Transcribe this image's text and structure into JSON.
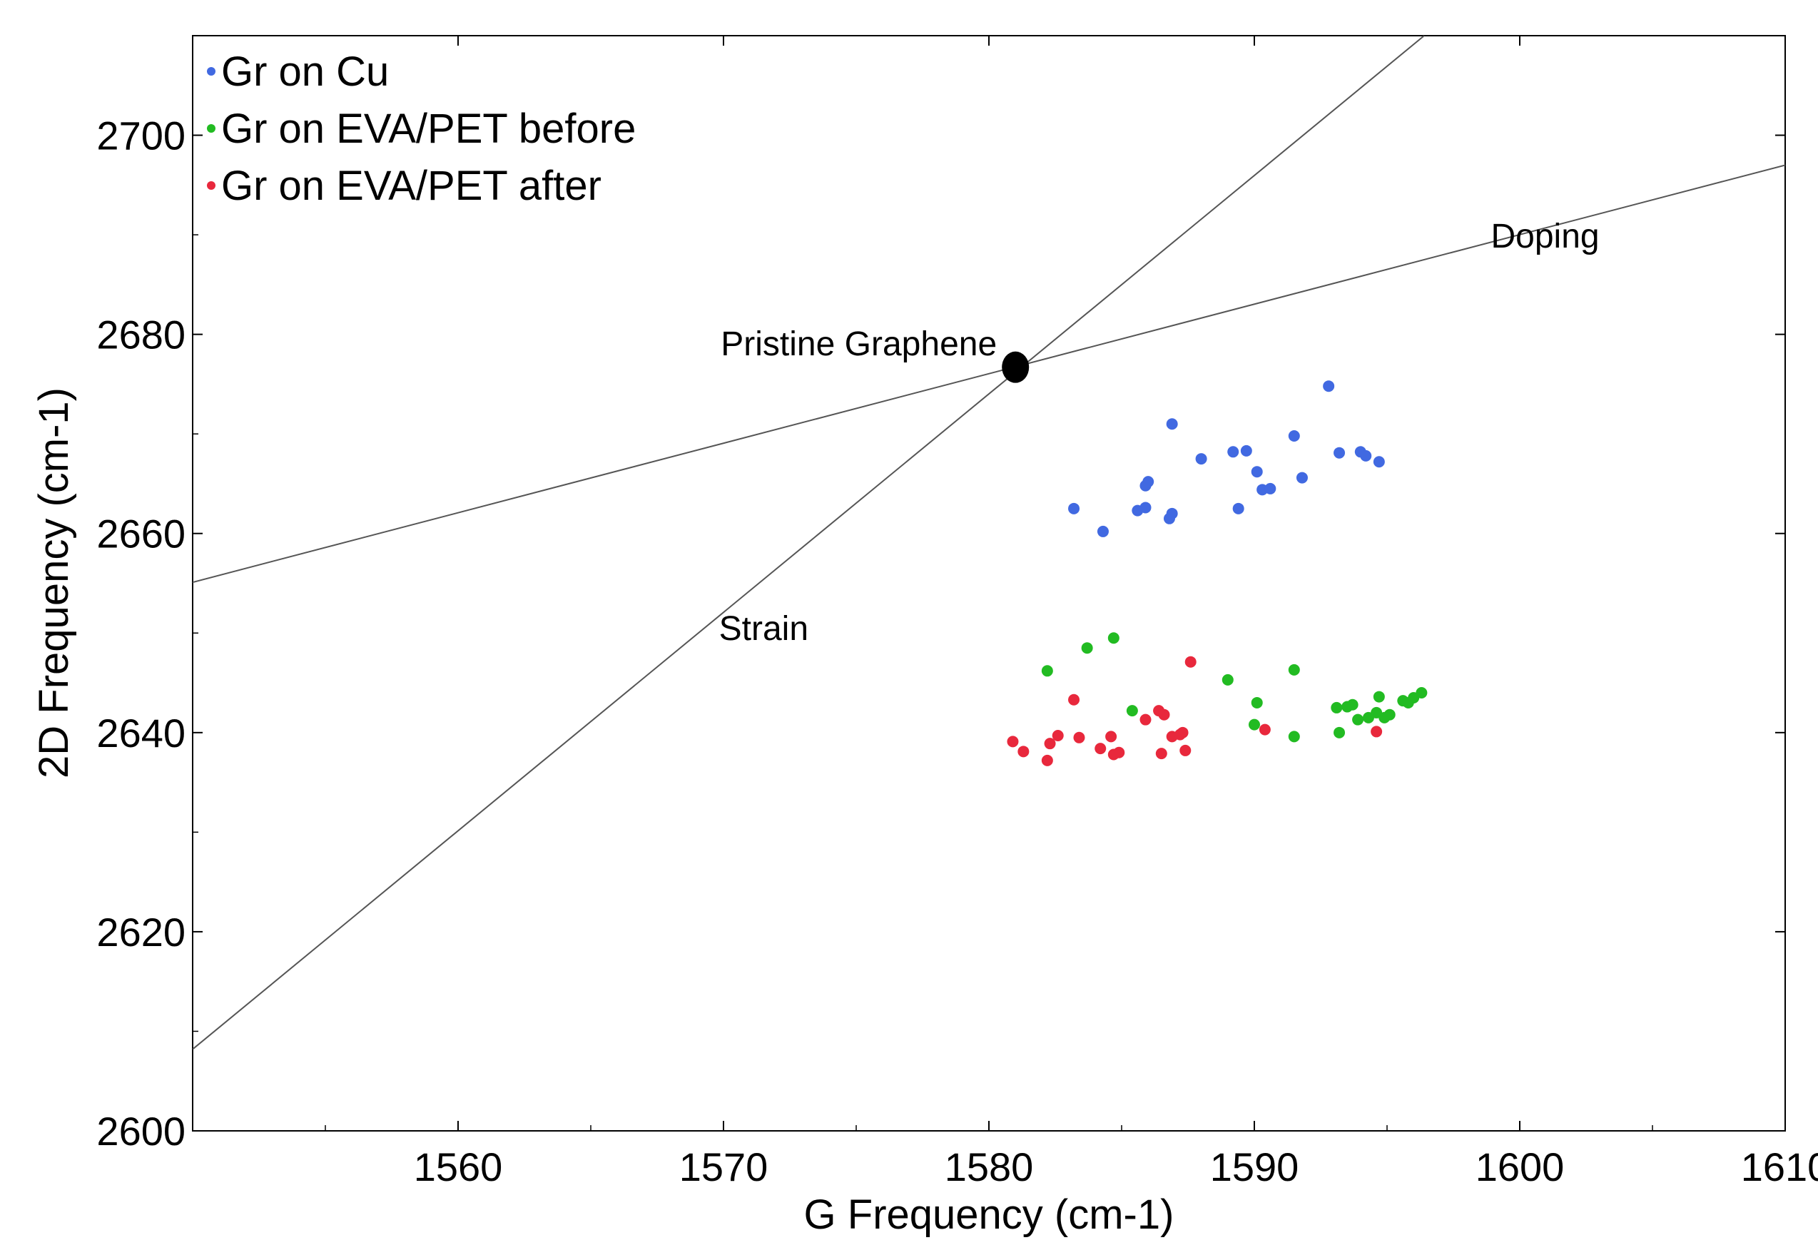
{
  "chart_data": {
    "type": "scatter",
    "title": "",
    "xlabel": "G Frequency (cm-1)",
    "ylabel": "2D Frequency (cm-1)",
    "xlim": [
      1550,
      1610
    ],
    "ylim": [
      2600,
      2710
    ],
    "xticks": [
      1560,
      1570,
      1580,
      1590,
      1600,
      1610
    ],
    "yticks": [
      2600,
      2620,
      2640,
      2660,
      2680,
      2700
    ],
    "grid": false,
    "legend_position": "top-left",
    "series": [
      {
        "name": "Gr on Cu",
        "color": "#4169e1",
        "points": [
          [
            1583.2,
            2662.5
          ],
          [
            1584.3,
            2660.2
          ],
          [
            1585.6,
            2662.3
          ],
          [
            1585.9,
            2662.6
          ],
          [
            1585.9,
            2664.8
          ],
          [
            1586.0,
            2665.2
          ],
          [
            1586.8,
            2661.5
          ],
          [
            1586.9,
            2662.0
          ],
          [
            1586.9,
            2671.0
          ],
          [
            1588.0,
            2667.5
          ],
          [
            1589.2,
            2668.2
          ],
          [
            1589.4,
            2662.5
          ],
          [
            1589.7,
            2668.3
          ],
          [
            1590.1,
            2666.2
          ],
          [
            1590.3,
            2664.4
          ],
          [
            1590.6,
            2664.5
          ],
          [
            1591.5,
            2669.8
          ],
          [
            1591.8,
            2665.6
          ],
          [
            1592.8,
            2674.8
          ],
          [
            1593.2,
            2668.1
          ],
          [
            1594.0,
            2668.2
          ],
          [
            1594.2,
            2667.8
          ],
          [
            1594.7,
            2667.2
          ]
        ]
      },
      {
        "name": "Gr on EVA/PET before",
        "color": "#22bb22",
        "points": [
          [
            1582.2,
            2646.2
          ],
          [
            1583.7,
            2648.5
          ],
          [
            1584.7,
            2649.5
          ],
          [
            1585.4,
            2642.2
          ],
          [
            1589.0,
            2645.3
          ],
          [
            1590.0,
            2640.8
          ],
          [
            1590.1,
            2643.0
          ],
          [
            1591.5,
            2646.3
          ],
          [
            1591.5,
            2639.6
          ],
          [
            1593.1,
            2642.5
          ],
          [
            1593.2,
            2640.0
          ],
          [
            1593.5,
            2642.6
          ],
          [
            1593.7,
            2642.8
          ],
          [
            1593.9,
            2641.3
          ],
          [
            1594.3,
            2641.5
          ],
          [
            1594.6,
            2642.0
          ],
          [
            1594.7,
            2643.6
          ],
          [
            1594.9,
            2641.5
          ],
          [
            1595.1,
            2641.8
          ],
          [
            1595.6,
            2643.2
          ],
          [
            1595.8,
            2643.0
          ],
          [
            1596.0,
            2643.5
          ],
          [
            1596.3,
            2644.0
          ]
        ]
      },
      {
        "name": "Gr on EVA/PET after",
        "color": "#e8283c",
        "points": [
          [
            1580.9,
            2639.1
          ],
          [
            1581.3,
            2638.1
          ],
          [
            1582.2,
            2637.2
          ],
          [
            1582.3,
            2638.9
          ],
          [
            1582.6,
            2639.7
          ],
          [
            1583.2,
            2643.3
          ],
          [
            1583.4,
            2639.5
          ],
          [
            1584.2,
            2638.4
          ],
          [
            1584.6,
            2639.6
          ],
          [
            1584.7,
            2637.8
          ],
          [
            1584.9,
            2638.0
          ],
          [
            1585.9,
            2641.3
          ],
          [
            1586.4,
            2642.2
          ],
          [
            1586.5,
            2637.9
          ],
          [
            1586.6,
            2641.8
          ],
          [
            1586.9,
            2639.6
          ],
          [
            1587.2,
            2639.8
          ],
          [
            1587.3,
            2640.0
          ],
          [
            1587.4,
            2638.2
          ],
          [
            1587.6,
            2647.1
          ],
          [
            1590.4,
            2640.3
          ],
          [
            1594.6,
            2640.1
          ]
        ]
      }
    ],
    "reference_lines": [
      {
        "name": "Strain",
        "x": [
          1550,
          1596.4
        ],
        "y": [
          2608.2,
          2710
        ]
      },
      {
        "name": "Doping",
        "x": [
          1550,
          1610
        ],
        "y": [
          2655.1,
          2697.0
        ]
      }
    ],
    "reference_point": {
      "name": "Pristine Graphene",
      "x": 1581.0,
      "y": 2676.7
    },
    "annotations": [
      "Pristine Graphene",
      "Strain",
      "Doping"
    ]
  }
}
